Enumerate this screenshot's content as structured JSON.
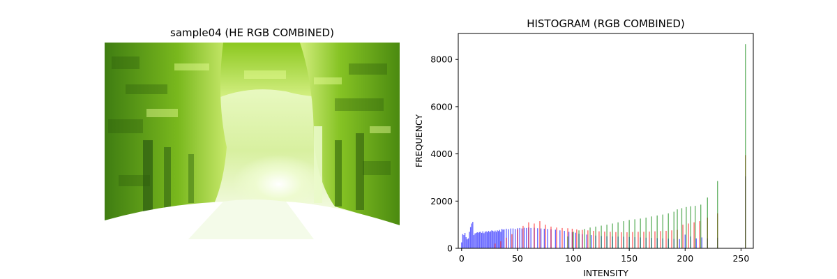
{
  "image_panel": {
    "title": "sample04 (HE RGB COMBINED)",
    "description_icon": "forest-road-photo"
  },
  "chart_data": {
    "type": "bar",
    "title": "HISTOGRAM (RGB COMBINED)",
    "xlabel": "INTENSITY",
    "ylabel": "FREQUENCY",
    "xlim": [
      -3,
      261
    ],
    "ylim": [
      0,
      9100
    ],
    "xticks": [
      0,
      50,
      100,
      150,
      200,
      250
    ],
    "yticks": [
      0,
      2000,
      4000,
      6000,
      8000
    ],
    "grid": false,
    "colors": {
      "red": "#ff0000",
      "green": "#008000",
      "blue": "#0000ff"
    },
    "series": [
      {
        "color": "blue",
        "points": [
          [
            0,
            250
          ],
          [
            1,
            600
          ],
          [
            2,
            560
          ],
          [
            3,
            650
          ],
          [
            4,
            470
          ],
          [
            5,
            380
          ],
          [
            6,
            420
          ],
          [
            7,
            700
          ],
          [
            8,
            900
          ],
          [
            9,
            1050
          ],
          [
            10,
            1120
          ],
          [
            11,
            560
          ],
          [
            12,
            630
          ],
          [
            13,
            650
          ],
          [
            14,
            680
          ],
          [
            15,
            660
          ],
          [
            16,
            690
          ],
          [
            17,
            700
          ],
          [
            18,
            650
          ],
          [
            19,
            720
          ],
          [
            20,
            640
          ],
          [
            21,
            700
          ],
          [
            22,
            720
          ],
          [
            23,
            680
          ],
          [
            24,
            740
          ],
          [
            25,
            700
          ],
          [
            26,
            720
          ],
          [
            27,
            760
          ],
          [
            28,
            740
          ],
          [
            29,
            700
          ],
          [
            30,
            750
          ],
          [
            31,
            700
          ],
          [
            32,
            760
          ],
          [
            33,
            730
          ],
          [
            34,
            780
          ],
          [
            35,
            700
          ],
          [
            36,
            820
          ],
          [
            37,
            790
          ],
          [
            38,
            800
          ],
          [
            40,
            830
          ],
          [
            42,
            810
          ],
          [
            44,
            840
          ],
          [
            46,
            840
          ],
          [
            48,
            820
          ],
          [
            50,
            850
          ],
          [
            52,
            860
          ],
          [
            54,
            840
          ],
          [
            56,
            870
          ],
          [
            58,
            860
          ],
          [
            60,
            880
          ],
          [
            62,
            860
          ],
          [
            65,
            870
          ],
          [
            68,
            850
          ],
          [
            71,
            840
          ],
          [
            74,
            830
          ],
          [
            77,
            820
          ],
          [
            80,
            810
          ],
          [
            84,
            790
          ],
          [
            88,
            760
          ],
          [
            92,
            740
          ],
          [
            96,
            700
          ],
          [
            99,
            680
          ],
          [
            102,
            660
          ],
          [
            105,
            620
          ],
          [
            108,
            600
          ],
          [
            112,
            580
          ],
          [
            116,
            560
          ],
          [
            120,
            540
          ],
          [
            125,
            520
          ],
          [
            130,
            510
          ],
          [
            135,
            500
          ],
          [
            140,
            495
          ],
          [
            145,
            490
          ],
          [
            150,
            480
          ],
          [
            155,
            470
          ],
          [
            160,
            460
          ],
          [
            165,
            450
          ],
          [
            170,
            440
          ],
          [
            175,
            430
          ],
          [
            180,
            420
          ],
          [
            185,
            410
          ],
          [
            190,
            400
          ],
          [
            195,
            390
          ],
          [
            200,
            580
          ],
          [
            205,
            500
          ],
          [
            210,
            420
          ],
          [
            215,
            460
          ],
          [
            220,
            420
          ],
          [
            229,
            450
          ],
          [
            254,
            3050
          ]
        ]
      },
      {
        "color": "red",
        "points": [
          [
            30,
            200
          ],
          [
            35,
            300
          ],
          [
            40,
            450
          ],
          [
            45,
            600
          ],
          [
            50,
            800
          ],
          [
            55,
            950
          ],
          [
            60,
            1100
          ],
          [
            65,
            1050
          ],
          [
            70,
            1150
          ],
          [
            75,
            1000
          ],
          [
            80,
            920
          ],
          [
            85,
            880
          ],
          [
            90,
            860
          ],
          [
            95,
            850
          ],
          [
            99,
            830
          ],
          [
            103,
            800
          ],
          [
            108,
            780
          ],
          [
            113,
            760
          ],
          [
            118,
            740
          ],
          [
            123,
            720
          ],
          [
            128,
            710
          ],
          [
            133,
            700
          ],
          [
            138,
            690
          ],
          [
            143,
            680
          ],
          [
            148,
            680
          ],
          [
            153,
            690
          ],
          [
            158,
            700
          ],
          [
            163,
            700
          ],
          [
            168,
            710
          ],
          [
            173,
            720
          ],
          [
            178,
            730
          ],
          [
            183,
            740
          ],
          [
            188,
            760
          ],
          [
            193,
            780
          ],
          [
            198,
            1000
          ],
          [
            203,
            1050
          ],
          [
            208,
            1100
          ],
          [
            213,
            1150
          ],
          [
            220,
            1300
          ],
          [
            229,
            1480
          ],
          [
            254,
            3950
          ]
        ]
      },
      {
        "color": "green",
        "points": [
          [
            95,
            500
          ],
          [
            100,
            700
          ],
          [
            105,
            760
          ],
          [
            110,
            820
          ],
          [
            115,
            880
          ],
          [
            120,
            920
          ],
          [
            125,
            960
          ],
          [
            130,
            1000
          ],
          [
            135,
            1050
          ],
          [
            140,
            1100
          ],
          [
            145,
            1150
          ],
          [
            150,
            1200
          ],
          [
            155,
            1230
          ],
          [
            160,
            1260
          ],
          [
            165,
            1300
          ],
          [
            170,
            1350
          ],
          [
            175,
            1390
          ],
          [
            180,
            1430
          ],
          [
            185,
            1480
          ],
          [
            190,
            1550
          ],
          [
            193,
            1650
          ],
          [
            197,
            1700
          ],
          [
            201,
            1750
          ],
          [
            205,
            1780
          ],
          [
            209,
            1800
          ],
          [
            214,
            1850
          ],
          [
            220,
            2150
          ],
          [
            229,
            2850
          ],
          [
            254,
            8650
          ]
        ]
      }
    ]
  }
}
